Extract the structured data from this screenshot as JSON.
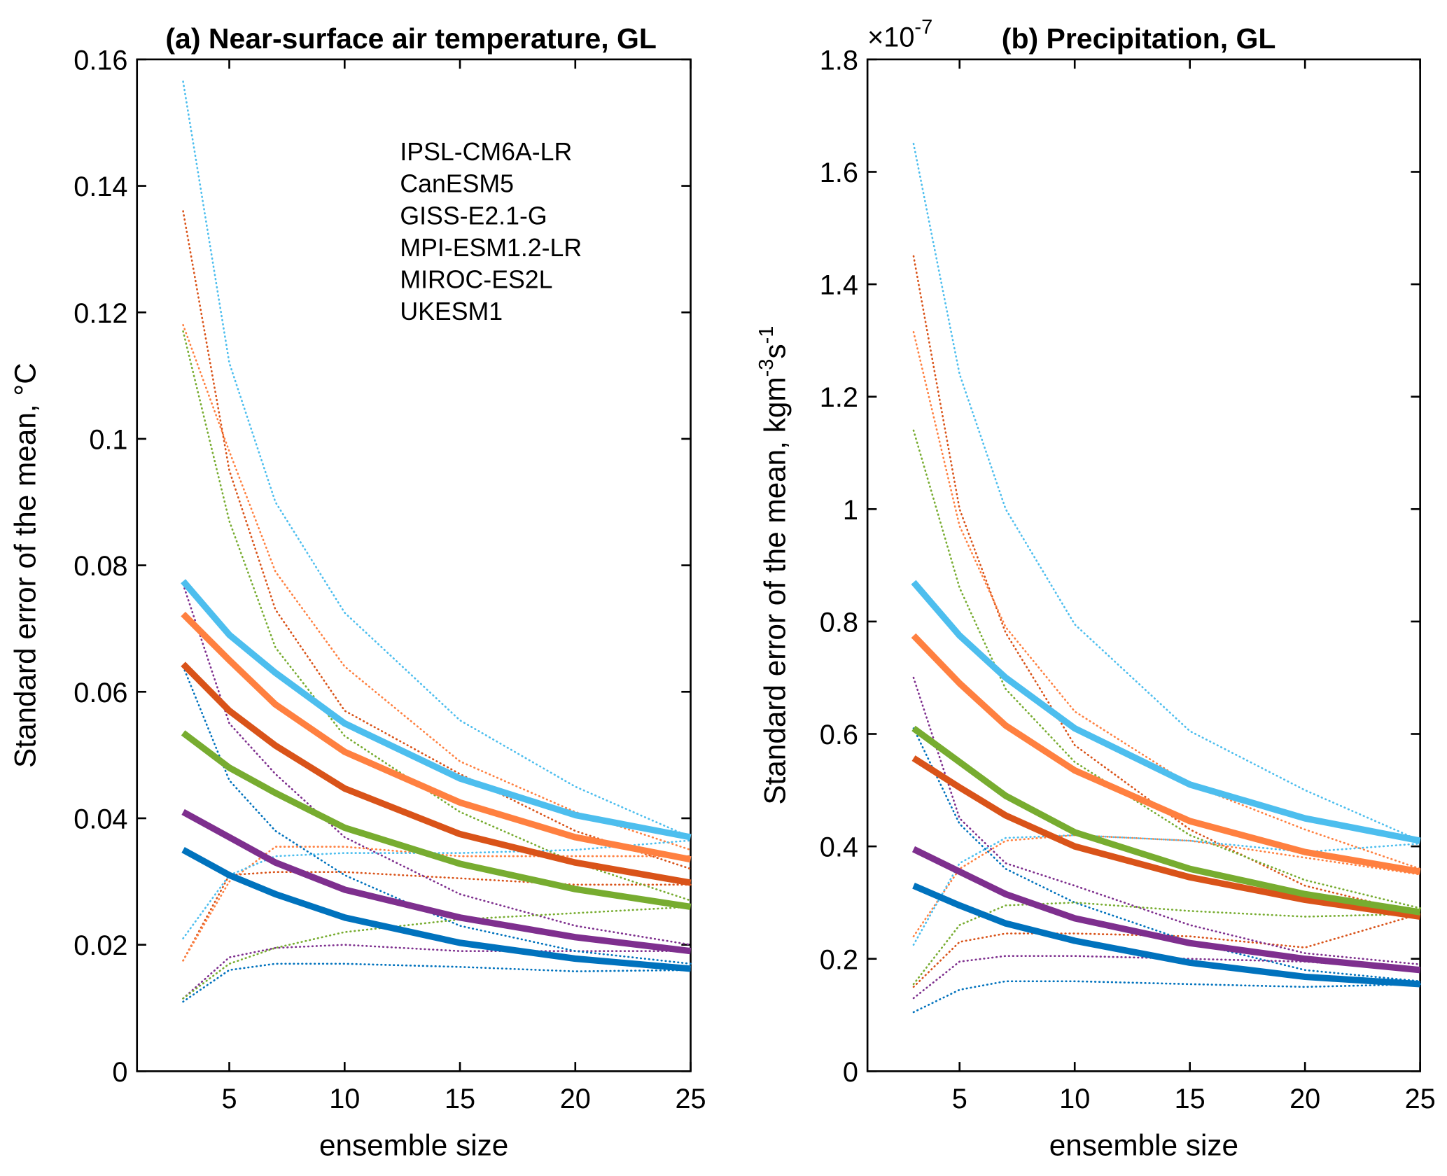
{
  "chart_data": [
    {
      "type": "line",
      "title": "(a) Near-surface air temperature, GL",
      "xlabel": "ensemble size",
      "ylabel": "Standard error of the mean, °C",
      "x": [
        3,
        5,
        7,
        10,
        15,
        20,
        25
      ],
      "xlim": [
        1,
        25
      ],
      "xticks": [
        5,
        10,
        15,
        20,
        25
      ],
      "ylim": [
        0,
        0.16
      ],
      "yticks": [
        0,
        0.02,
        0.04,
        0.06,
        0.08,
        0.1,
        0.12,
        0.14,
        0.16
      ],
      "legend": "upper right",
      "series": [
        {
          "name": "IPSL-CM6A-LR",
          "color": "#d95319",
          "values": [
            0.0644,
            0.057,
            0.0515,
            0.0447,
            0.0375,
            0.033,
            0.0298
          ],
          "upper": [
            0.136,
            0.095,
            0.073,
            0.057,
            0.047,
            0.038,
            0.032
          ],
          "lower": [
            0.0175,
            0.031,
            0.0315,
            0.0315,
            0.0305,
            0.0295,
            0.0295
          ]
        },
        {
          "name": "CanESM5",
          "color": "#7e2f8e",
          "values": [
            0.041,
            0.037,
            0.033,
            0.0287,
            0.0243,
            0.0212,
            0.019
          ],
          "upper": [
            0.077,
            0.055,
            0.047,
            0.037,
            0.028,
            0.023,
            0.02
          ],
          "lower": [
            0.0115,
            0.018,
            0.0195,
            0.02,
            0.019,
            0.019,
            0.019
          ]
        },
        {
          "name": "GISS-E2.1-G",
          "color": "#ff8040",
          "values": [
            0.0723,
            0.065,
            0.058,
            0.0505,
            0.0425,
            0.037,
            0.0335
          ],
          "upper": [
            0.118,
            0.098,
            0.079,
            0.064,
            0.049,
            0.041,
            0.035
          ],
          "lower": [
            0.0175,
            0.03,
            0.0355,
            0.0355,
            0.034,
            0.034,
            0.034
          ]
        },
        {
          "name": "MPI-ESM1.2-LR",
          "color": "#0072bd",
          "values": [
            0.035,
            0.031,
            0.028,
            0.0243,
            0.0203,
            0.0178,
            0.0162
          ],
          "upper": [
            0.064,
            0.046,
            0.038,
            0.031,
            0.023,
            0.019,
            0.017
          ],
          "lower": [
            0.011,
            0.016,
            0.017,
            0.017,
            0.0165,
            0.0158,
            0.016
          ]
        },
        {
          "name": "MIROC-ES2L",
          "color": "#77ac30",
          "values": [
            0.0535,
            0.048,
            0.044,
            0.0385,
            0.0328,
            0.0288,
            0.026
          ],
          "upper": [
            0.117,
            0.087,
            0.067,
            0.053,
            0.041,
            0.033,
            0.027
          ],
          "lower": [
            0.0115,
            0.017,
            0.0195,
            0.022,
            0.024,
            0.025,
            0.026
          ]
        },
        {
          "name": "UKESM1",
          "color": "#4dbeee",
          "values": [
            0.0775,
            0.069,
            0.063,
            0.055,
            0.0463,
            0.0405,
            0.037
          ],
          "upper": [
            0.1565,
            0.112,
            0.09,
            0.0725,
            0.0555,
            0.045,
            0.037
          ],
          "lower": [
            0.021,
            0.031,
            0.034,
            0.0345,
            0.0345,
            0.035,
            0.0365
          ]
        }
      ]
    },
    {
      "type": "line",
      "title": "(b) Precipitation, GL",
      "xlabel": "ensemble size",
      "ylabel": [
        "Standard error of the mean, kgm",
        "-3",
        "s",
        "-1"
      ],
      "yscale_label": {
        "base": "×10",
        "exponent": "-7"
      },
      "x": [
        3,
        5,
        7,
        10,
        15,
        20,
        25
      ],
      "xlim": [
        1,
        25
      ],
      "xticks": [
        5,
        10,
        15,
        20,
        25
      ],
      "ylim": [
        0,
        1.8
      ],
      "yticks": [
        0,
        0.2,
        0.4,
        0.6,
        0.8,
        1,
        1.2,
        1.4,
        1.6,
        1.8
      ],
      "series": [
        {
          "color": "#d95319",
          "values": [
            0.557,
            0.505,
            0.455,
            0.4,
            0.345,
            0.305,
            0.275
          ],
          "upper": [
            1.45,
            1.0,
            0.78,
            0.58,
            0.43,
            0.33,
            0.28
          ],
          "lower": [
            0.15,
            0.23,
            0.245,
            0.245,
            0.24,
            0.22,
            0.28
          ]
        },
        {
          "color": "#7e2f8e",
          "values": [
            0.395,
            0.355,
            0.315,
            0.272,
            0.228,
            0.2,
            0.18
          ],
          "upper": [
            0.7,
            0.45,
            0.37,
            0.33,
            0.26,
            0.21,
            0.19
          ],
          "lower": [
            0.13,
            0.195,
            0.205,
            0.205,
            0.2,
            0.195,
            0.18
          ]
        },
        {
          "color": "#ff8040",
          "values": [
            0.775,
            0.69,
            0.615,
            0.535,
            0.445,
            0.39,
            0.355
          ],
          "upper": [
            1.315,
            0.97,
            0.79,
            0.64,
            0.51,
            0.43,
            0.36
          ],
          "lower": [
            0.24,
            0.36,
            0.41,
            0.42,
            0.41,
            0.38,
            0.35
          ]
        },
        {
          "color": "#0072bd",
          "values": [
            0.33,
            0.295,
            0.263,
            0.232,
            0.193,
            0.168,
            0.155
          ],
          "upper": [
            0.61,
            0.44,
            0.36,
            0.3,
            0.23,
            0.18,
            0.16
          ],
          "lower": [
            0.105,
            0.145,
            0.16,
            0.16,
            0.155,
            0.15,
            0.155
          ]
        },
        {
          "color": "#77ac30",
          "values": [
            0.61,
            0.55,
            0.49,
            0.425,
            0.36,
            0.315,
            0.283
          ],
          "upper": [
            1.14,
            0.86,
            0.68,
            0.55,
            0.42,
            0.34,
            0.29
          ],
          "lower": [
            0.155,
            0.26,
            0.295,
            0.3,
            0.285,
            0.275,
            0.28
          ]
        },
        {
          "color": "#4dbeee",
          "values": [
            0.87,
            0.775,
            0.7,
            0.61,
            0.51,
            0.45,
            0.41
          ],
          "upper": [
            1.65,
            1.24,
            1.0,
            0.795,
            0.605,
            0.5,
            0.41
          ],
          "lower": [
            0.225,
            0.37,
            0.415,
            0.42,
            0.41,
            0.39,
            0.405
          ]
        }
      ]
    }
  ]
}
